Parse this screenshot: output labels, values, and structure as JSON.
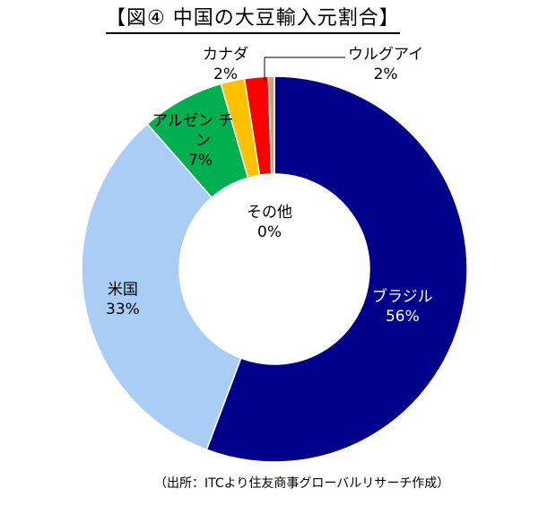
{
  "title": "【図④ 中国の大豆輸入元割合】",
  "source": "（出所：ITCより住友商事グローバルリサーチ作成）",
  "chart_data": {
    "type": "pie",
    "donut": true,
    "categories": [
      "ブラジル",
      "米国",
      "アルゼンチン",
      "カナダ",
      "ウルグアイ",
      "その他"
    ],
    "values": [
      56,
      33,
      7,
      2,
      2,
      0.5
    ],
    "value_labels": [
      "56%",
      "33%",
      "7%",
      "2%",
      "2%",
      "0%"
    ],
    "colors": [
      "#00008B",
      "#A9CDF5",
      "#00B050",
      "#FFC000",
      "#FF0000",
      "#C9A37A"
    ],
    "legend": "none"
  },
  "labels": {
    "brazil": [
      "ブラジル",
      "56%"
    ],
    "usa": [
      "米国",
      "33%"
    ],
    "argentina": [
      "アルゼン チ",
      "ン",
      "7%"
    ],
    "canada": [
      "カナダ",
      "2%"
    ],
    "uruguay": [
      "ウルグアイ",
      "2%"
    ],
    "other": [
      "その他",
      "0%"
    ]
  }
}
